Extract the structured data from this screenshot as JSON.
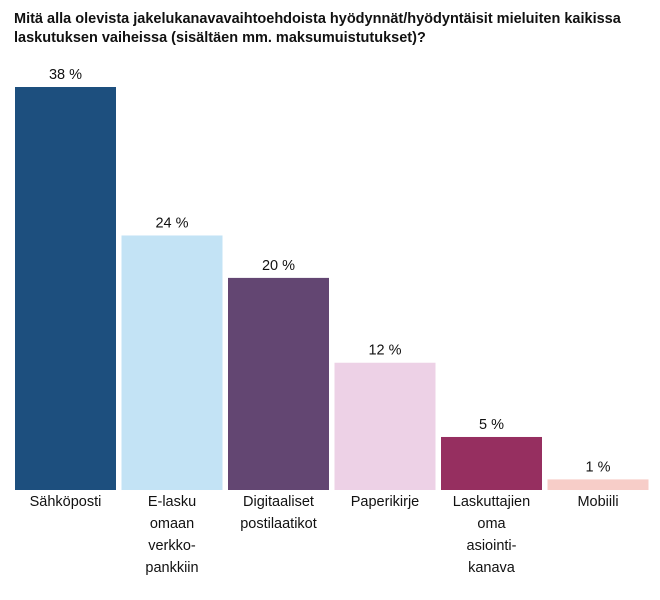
{
  "chart_data": {
    "type": "bar",
    "title": "Mitä alla olevista jakelukanavavaihtoehdoista hyödynnät/hyödyntäisit mieluiten kaikissa laskutuksen vaiheissa (sisältäen mm. maksumuistutukset)?",
    "xlabel": "",
    "ylabel": "",
    "ylim": [
      0,
      38
    ],
    "grid": false,
    "legend": "none",
    "categories": [
      [
        "Sähköposti"
      ],
      [
        "E-lasku",
        "omaan",
        "verkko-",
        "pankkiin"
      ],
      [
        "Digitaaliset",
        "postilaatikot"
      ],
      [
        "Paperikirje"
      ],
      [
        "Laskuttajien",
        "oma",
        "asiointi-",
        "kanava"
      ],
      [
        "Mobiili"
      ]
    ],
    "values": [
      38,
      24,
      20,
      12,
      5,
      1
    ],
    "value_labels": [
      "38 %",
      "24 %",
      "20 %",
      "12 %",
      "5 %",
      "1 %"
    ],
    "colors": [
      "#1d4f7e",
      "#c3e3f5",
      "#634672",
      "#edd1e6",
      "#962f60",
      "#f7cdc8"
    ]
  }
}
